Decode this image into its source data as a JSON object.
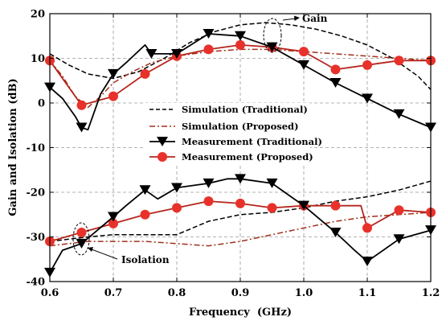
{
  "chart_data": {
    "type": "line",
    "xlabel": "Frequency  (GHz)",
    "ylabel": "Gain and Isolation (dB)",
    "xlim": [
      0.6,
      1.2
    ],
    "ylim": [
      -40,
      20
    ],
    "x_ticks": [
      "0.6",
      "0.7",
      "0.8",
      "0.9",
      "1.0",
      "1.1",
      "1.2"
    ],
    "y_ticks": [
      "-40",
      "-30",
      "-20",
      "-10",
      "0",
      "10",
      "20"
    ],
    "grid": true,
    "legend_position": "center-right",
    "annotations": [
      {
        "text": "Gain",
        "x": 1.02,
        "y": 18
      },
      {
        "text": "Isolation",
        "x": 0.67,
        "y": -35
      }
    ],
    "series": [
      {
        "name": "Simulation (Traditional)",
        "color": "#000000",
        "style": "dashed",
        "segments": [
          {
            "x": [
              0.6,
              0.63,
              0.66,
              0.7,
              0.74,
              0.78,
              0.82,
              0.86,
              0.9,
              0.94,
              0.98,
              1.02,
              1.06,
              1.1,
              1.14,
              1.18,
              1.2
            ],
            "y": [
              11,
              8.5,
              6.5,
              5.5,
              7,
              10,
              13.5,
              16,
              17.5,
              18,
              17.5,
              16.5,
              15,
              13,
              10,
              6,
              3
            ]
          },
          {
            "x": [
              0.6,
              0.63,
              0.66,
              0.7,
              0.75,
              0.8,
              0.85,
              0.9,
              0.95,
              1.0,
              1.05,
              1.1,
              1.15,
              1.2
            ],
            "y": [
              -31,
              -30.5,
              -30,
              -29.5,
              -29.5,
              -29.5,
              -26.5,
              -25,
              -24.5,
              -23.5,
              -22,
              -21,
              -19.5,
              -17.5
            ]
          }
        ]
      },
      {
        "name": "Simulation (Proposed)",
        "color": "#a0301c",
        "style": "dashdot",
        "segments": [
          {
            "x": [
              0.6,
              0.62,
              0.64,
              0.66,
              0.68,
              0.7,
              0.73,
              0.76,
              0.8,
              0.85,
              0.9,
              0.95,
              1.0,
              1.05,
              1.1,
              1.15,
              1.2
            ],
            "y": [
              9.5,
              6,
              1.5,
              -1,
              1.5,
              4.5,
              7,
              9,
              10.5,
              11.5,
              12,
              12,
              11.5,
              11,
              10.5,
              10,
              9.5
            ]
          },
          {
            "x": [
              0.6,
              0.63,
              0.66,
              0.7,
              0.75,
              0.8,
              0.85,
              0.9,
              0.95,
              1.0,
              1.05,
              1.1,
              1.15,
              1.2
            ],
            "y": [
              -32,
              -31.5,
              -31,
              -31,
              -31,
              -31.5,
              -32,
              -31,
              -29.5,
              -28,
              -26.5,
              -25.5,
              -25,
              -24.5
            ]
          }
        ]
      },
      {
        "name": "Measurement (Traditional)",
        "color": "#000000",
        "style": "solid",
        "marker": "triangle-down",
        "segments": [
          {
            "x": [
              0.6,
              0.62,
              0.64,
              0.65,
              0.66,
              0.68,
              0.7,
              0.72,
              0.75,
              0.76,
              0.8,
              0.85,
              0.9,
              0.95,
              1.0,
              1.05,
              1.1,
              1.15,
              1.2
            ],
            "y": [
              3.5,
              1,
              -3,
              -5.5,
              -6,
              2,
              6.5,
              9,
              13,
              11,
              11,
              15.5,
              15,
              12.5,
              8.5,
              4.5,
              1,
              -2.5,
              -5.5
            ],
            "markers_x": [
              0.6,
              0.65,
              0.7,
              0.76,
              0.8,
              0.85,
              0.9,
              0.95,
              1.0,
              1.05,
              1.1,
              1.15,
              1.2
            ],
            "markers_y": [
              3.5,
              -5.5,
              6.5,
              11,
              11,
              15.5,
              15,
              12.5,
              8.5,
              4.5,
              1,
              -2.5,
              -5.5
            ]
          },
          {
            "x": [
              0.6,
              0.62,
              0.65,
              0.7,
              0.72,
              0.75,
              0.77,
              0.8,
              0.85,
              0.88,
              0.9,
              0.95,
              0.98,
              1.0,
              1.05,
              1.08,
              1.1,
              1.15,
              1.2
            ],
            "y": [
              -38,
              -33,
              -31.5,
              -25.5,
              -23,
              -19.5,
              -21.5,
              -19,
              -18,
              -17,
              -17,
              -18,
              -21,
              -23,
              -29,
              -33,
              -35.5,
              -30.5,
              -28.5
            ],
            "markers_x": [
              0.6,
              0.65,
              0.7,
              0.75,
              0.8,
              0.85,
              0.9,
              0.95,
              1.0,
              1.05,
              1.1,
              1.15,
              1.2
            ],
            "markers_y": [
              -38,
              -31.5,
              -25.5,
              -19.5,
              -19,
              -18,
              -17,
              -18,
              -23,
              -29,
              -35.5,
              -30.5,
              -28.5
            ]
          }
        ]
      },
      {
        "name": "Measurement (Proposed)",
        "color": "#e8312a",
        "line_color": "#b5261e",
        "style": "solid",
        "marker": "circle",
        "segments": [
          {
            "x": [
              0.6,
              0.65,
              0.7,
              0.75,
              0.8,
              0.85,
              0.9,
              0.95,
              1.0,
              1.05,
              1.1,
              1.15,
              1.2
            ],
            "y": [
              9.5,
              -0.5,
              1.5,
              6.5,
              10.5,
              12,
              13,
              12.5,
              11.5,
              7.5,
              8.5,
              9.5,
              9.5
            ],
            "markers_x": [
              0.6,
              0.65,
              0.7,
              0.75,
              0.8,
              0.85,
              0.9,
              0.95,
              1.0,
              1.05,
              1.1,
              1.15,
              1.2
            ],
            "markers_y": [
              9.5,
              -0.5,
              1.5,
              6.5,
              10.5,
              12,
              13,
              12.5,
              11.5,
              7.5,
              8.5,
              9.5,
              9.5
            ]
          },
          {
            "x": [
              0.6,
              0.65,
              0.7,
              0.75,
              0.8,
              0.85,
              0.9,
              0.95,
              1.0,
              1.05,
              1.09,
              1.1,
              1.15,
              1.2
            ],
            "y": [
              -31,
              -29,
              -27,
              -25,
              -23.5,
              -22,
              -22.5,
              -23.5,
              -23,
              -23,
              -23,
              -28,
              -24,
              -24.5
            ],
            "markers_x": [
              0.6,
              0.65,
              0.7,
              0.75,
              0.8,
              0.85,
              0.9,
              0.95,
              1.0,
              1.05,
              1.1,
              1.15,
              1.2
            ],
            "markers_y": [
              -31,
              -29,
              -27,
              -25,
              -23.5,
              -22,
              -22.5,
              -23.5,
              -23,
              -23,
              -28,
              -24,
              -24.5
            ]
          }
        ]
      }
    ]
  }
}
